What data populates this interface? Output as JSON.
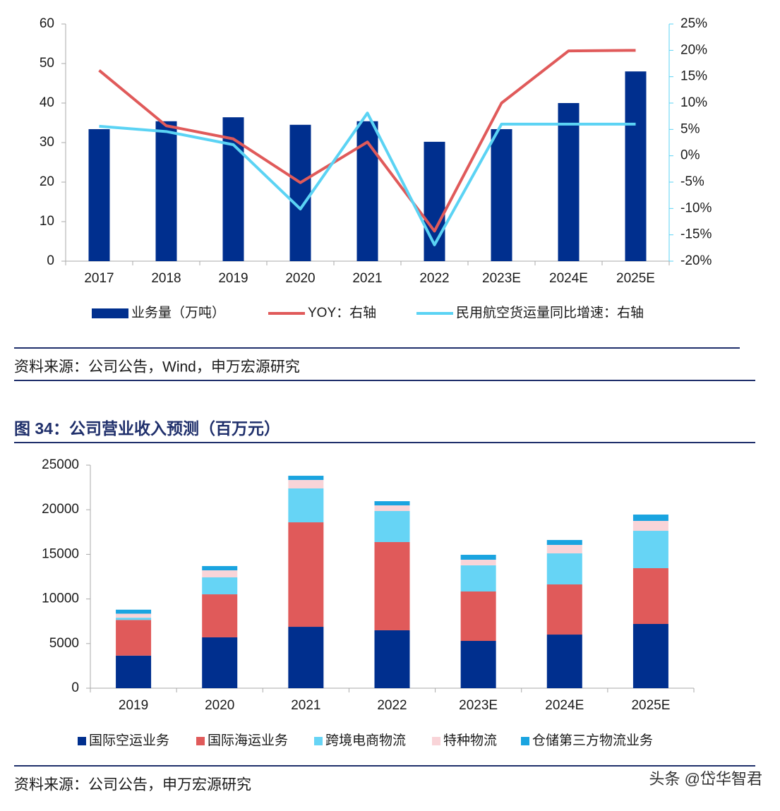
{
  "chart_data": [
    {
      "type": "bar-line",
      "categories": [
        "2017",
        "2018",
        "2019",
        "2020",
        "2021",
        "2022",
        "2023E",
        "2024E",
        "2025E"
      ],
      "series": [
        {
          "name": "业务量（万吨）",
          "color": "#002f8e",
          "kind": "bar",
          "values": [
            33.4,
            35.4,
            36.4,
            34.5,
            35.4,
            30.2,
            33.4,
            40,
            48
          ]
        },
        {
          "name": "YOY：右轴",
          "color": "#e05a5a",
          "kind": "line",
          "axis": "y2",
          "values": [
            16.2,
            5.7,
            3.2,
            -5.1,
            2.6,
            -14.3,
            10,
            19.9,
            20
          ]
        },
        {
          "name": "民用航空货运量同比增速：右轴",
          "color": "#5bd3f4",
          "kind": "line",
          "axis": "y2",
          "values": [
            5.6,
            4.6,
            2.1,
            -10.1,
            8.1,
            -16.9,
            6,
            6,
            6
          ]
        }
      ],
      "ylim": [
        0,
        60
      ],
      "yticks": [
        0,
        10,
        20,
        30,
        40,
        50,
        60
      ],
      "y2lim": [
        -20,
        25
      ],
      "y2ticks": [
        {
          "value": -20,
          "label": "-20%"
        },
        {
          "value": -15,
          "label": "-15%"
        },
        {
          "value": -10,
          "label": "-10%"
        },
        {
          "value": -5,
          "label": "-5%"
        },
        {
          "value": 0,
          "label": "0%"
        },
        {
          "value": 5,
          "label": "5%"
        },
        {
          "value": 10,
          "label": "10%"
        },
        {
          "value": 15,
          "label": "15%"
        },
        {
          "value": 20,
          "label": "20%"
        },
        {
          "value": 25,
          "label": "25%"
        }
      ],
      "source": "资料来源：公司公告，Wind，申万宏源研究"
    },
    {
      "type": "stacked-bar",
      "title": "图 34：公司营业收入预测（百万元）",
      "categories": [
        "2019",
        "2020",
        "2021",
        "2022",
        "2023E",
        "2024E",
        "2025E"
      ],
      "series": [
        {
          "name": "国际空运业务",
          "color": "#002f8e",
          "values": [
            3650,
            5700,
            6880,
            6490,
            5300,
            6010,
            7200
          ]
        },
        {
          "name": "国际海运业务",
          "color": "#e05a5a",
          "values": [
            4000,
            4820,
            11710,
            9890,
            5540,
            5620,
            6250
          ]
        },
        {
          "name": "跨境电商物流",
          "color": "#66d4f5",
          "values": [
            250,
            1900,
            3800,
            3480,
            2930,
            3480,
            4190
          ]
        },
        {
          "name": "特种物流",
          "color": "#f9d4d8",
          "values": [
            450,
            790,
            950,
            630,
            630,
            950,
            1110
          ]
        },
        {
          "name": "仓储第三方物流业务",
          "color": "#1aa4e0",
          "values": [
            450,
            480,
            470,
            470,
            550,
            550,
            710
          ]
        }
      ],
      "ylim": [
        0,
        25000
      ],
      "yticks": [
        0,
        5000,
        10000,
        15000,
        20000,
        25000
      ],
      "source": "资料来源：公司公告，申万宏源研究"
    }
  ],
  "watermark": "头条 @岱华智君"
}
